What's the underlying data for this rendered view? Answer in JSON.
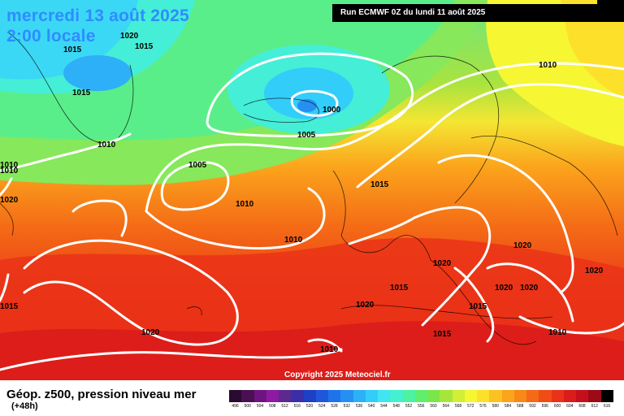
{
  "title": {
    "line1": "mercredi 13 août 2025",
    "line2": "2:00 locale"
  },
  "run_info": "Run ECMWF 0Z du lundi 11 août 2025",
  "copyright": "Copyright 2025 Meteociel.fr",
  "parameter": "Géop. z500, pression niveau mer",
  "lead_time": "(+48h)",
  "isobar_labels": [
    {
      "id": "L1020a",
      "text": "1020"
    },
    {
      "id": "L1015a",
      "text": "1015"
    },
    {
      "id": "L1015b",
      "text": "1015"
    },
    {
      "id": "L1015c",
      "text": "1015"
    },
    {
      "id": "L1010a",
      "text": "1010"
    },
    {
      "id": "L1010b",
      "text": "1010"
    },
    {
      "id": "L1010c",
      "text": "1010"
    },
    {
      "id": "L1000",
      "text": "1000"
    },
    {
      "id": "L1005a",
      "text": "1005"
    },
    {
      "id": "L1005b",
      "text": "1005"
    },
    {
      "id": "L1010d",
      "text": "1010"
    },
    {
      "id": "L1010e",
      "text": "1010"
    },
    {
      "id": "L1015d",
      "text": "1015"
    },
    {
      "id": "L1010f",
      "text": "1010"
    },
    {
      "id": "L1020b",
      "text": "1020"
    },
    {
      "id": "L1020c",
      "text": "1020"
    },
    {
      "id": "L1015e",
      "text": "1015"
    },
    {
      "id": "L1020d",
      "text": "1020"
    },
    {
      "id": "L1020e",
      "text": "1020"
    },
    {
      "id": "L1020f",
      "text": "1020"
    },
    {
      "id": "L1020g",
      "text": "1020"
    },
    {
      "id": "L1015f",
      "text": "1015"
    },
    {
      "id": "L1015g",
      "text": "1015"
    },
    {
      "id": "L1020h",
      "text": "1020"
    },
    {
      "id": "L1010g",
      "text": "1010"
    },
    {
      "id": "L1015h",
      "text": "1015"
    },
    {
      "id": "L1010h",
      "text": "1010"
    },
    {
      "id": "L1020i",
      "text": "1020"
    }
  ],
  "color_scale": [
    {
      "label": "496",
      "color": "#2a0a30"
    },
    {
      "label": "500",
      "color": "#4c0f55"
    },
    {
      "label": "504",
      "color": "#6e1480"
    },
    {
      "label": "508",
      "color": "#8e1aa3"
    },
    {
      "label": "512",
      "color": "#5b2a8c"
    },
    {
      "label": "516",
      "color": "#3a2fa8"
    },
    {
      "label": "520",
      "color": "#1f3fc4"
    },
    {
      "label": "524",
      "color": "#1e57dc"
    },
    {
      "label": "528",
      "color": "#1f73ea"
    },
    {
      "label": "532",
      "color": "#2590f2"
    },
    {
      "label": "536",
      "color": "#2db0f7"
    },
    {
      "label": "540",
      "color": "#33cdf9"
    },
    {
      "label": "544",
      "color": "#3fe6f2"
    },
    {
      "label": "548",
      "color": "#45f0cf"
    },
    {
      "label": "552",
      "color": "#4df2a0"
    },
    {
      "label": "556",
      "color": "#5fee6e"
    },
    {
      "label": "560",
      "color": "#7ae64a"
    },
    {
      "label": "564",
      "color": "#a6e63a"
    },
    {
      "label": "568",
      "color": "#d2ee36"
    },
    {
      "label": "572",
      "color": "#f6f632"
    },
    {
      "label": "576",
      "color": "#fde02a"
    },
    {
      "label": "580",
      "color": "#fcc222"
    },
    {
      "label": "584",
      "color": "#fba41c"
    },
    {
      "label": "588",
      "color": "#f88818"
    },
    {
      "label": "592",
      "color": "#f46a16"
    },
    {
      "label": "596",
      "color": "#f04c16"
    },
    {
      "label": "600",
      "color": "#ea3218"
    },
    {
      "label": "604",
      "color": "#dc1c1a"
    },
    {
      "label": "608",
      "color": "#c4101c"
    },
    {
      "label": "612",
      "color": "#9c0a18"
    },
    {
      "label": "616",
      "color": "#000000"
    }
  ]
}
